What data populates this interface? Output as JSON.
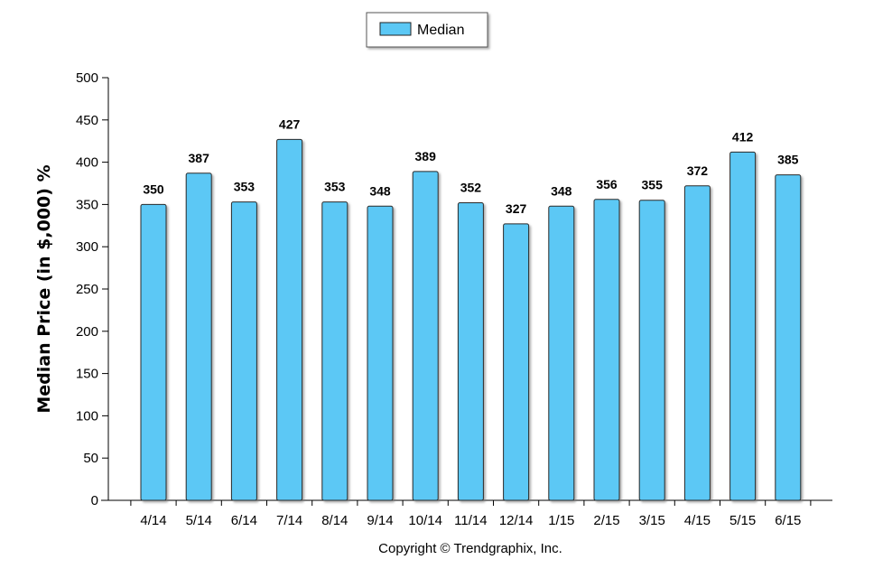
{
  "chart_data": {
    "type": "bar",
    "categories": [
      "4/14",
      "5/14",
      "6/14",
      "7/14",
      "8/14",
      "9/14",
      "10/14",
      "11/14",
      "12/14",
      "1/15",
      "2/15",
      "3/15",
      "4/15",
      "5/15",
      "6/15"
    ],
    "series": [
      {
        "name": "Median",
        "values": [
          350,
          387,
          353,
          427,
          353,
          348,
          389,
          352,
          327,
          348,
          356,
          355,
          372,
          412,
          385
        ]
      }
    ],
    "ylabel": "Median Price (in $,000) %",
    "xlabel": "",
    "ylim": [
      0,
      500
    ],
    "yticks": [
      0,
      50,
      100,
      150,
      200,
      250,
      300,
      350,
      400,
      450,
      500
    ],
    "legend_placement": "top-center",
    "grid": false,
    "colors": {
      "bar_fill": "#5bc8f5",
      "bar_stroke": "#2a2a2a"
    }
  },
  "footer": {
    "copyright": "Copyright © Trendgraphix, Inc."
  }
}
